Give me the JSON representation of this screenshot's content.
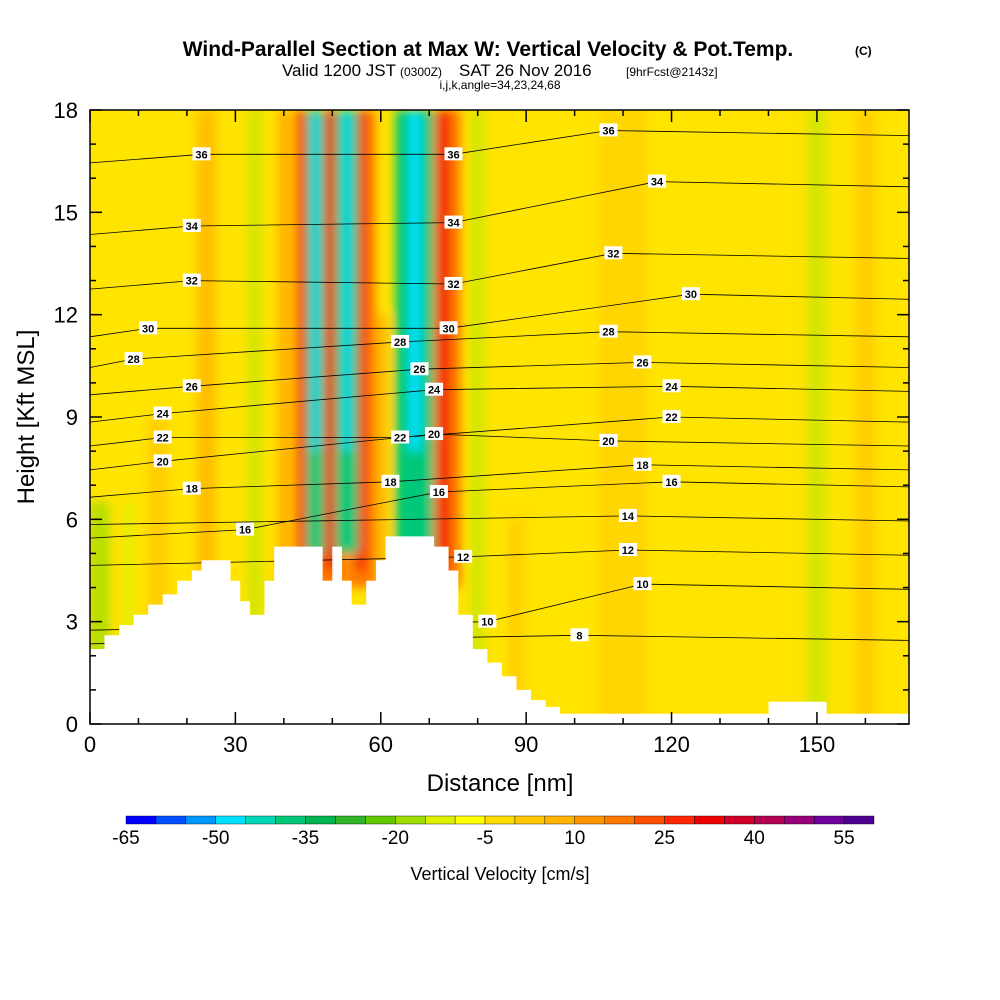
{
  "header": {
    "title": "Wind-Parallel Section at Max W: Vertical Velocity & Pot.Temp.",
    "copyright": "(C)",
    "valid_a": "Valid 1200 JST",
    "valid_utc": "(0300Z)",
    "valid_b": "SAT 26 Nov 2016",
    "forecast": "[9hrFcst@2143z]",
    "indices": "i,j,k,angle=34,23,24,68"
  },
  "chart_data": {
    "type": "heatmap",
    "title": "Wind-Parallel Section at Max W: Vertical Velocity & Pot.Temp.",
    "xlabel": "Distance [nm]",
    "ylabel": "Height [Kft MSL]",
    "xlim": [
      0,
      169
    ],
    "ylim": [
      0,
      18
    ],
    "x_ticks": [
      0,
      30,
      60,
      90,
      120,
      150
    ],
    "y_ticks": [
      0,
      3,
      6,
      9,
      12,
      15,
      18
    ],
    "colorbar": {
      "label": "Vertical Velocity [cm/s]",
      "min": -65,
      "max": 60,
      "step": 5,
      "tick_values": [
        -65,
        -50,
        -35,
        -20,
        -5,
        10,
        25,
        40,
        55
      ],
      "colors": [
        "#0000ff",
        "#0050ff",
        "#0096ff",
        "#00e0ff",
        "#00d7b4",
        "#00c878",
        "#00b450",
        "#32b428",
        "#64c800",
        "#a0dc00",
        "#dcf000",
        "#ffff00",
        "#ffdc00",
        "#ffc800",
        "#ffb400",
        "#ff9600",
        "#ff7800",
        "#ff5000",
        "#ff2800",
        "#f00000",
        "#d20028",
        "#b40050",
        "#960078",
        "#6e00a0",
        "#500090"
      ]
    },
    "updraft_bands": [
      {
        "x": 44,
        "w": 1.2,
        "max_height": 18
      },
      {
        "x": 49.5,
        "w": 2.0,
        "max_height": 18
      },
      {
        "x": 56,
        "w": 1.8,
        "max_height": 18
      },
      {
        "x": 73,
        "w": 2.2,
        "max_height": 18
      }
    ],
    "downdraft_bands": [
      {
        "x": 46.5,
        "w": 1.2,
        "max_height": 18
      },
      {
        "x": 53,
        "w": 1.5,
        "max_height": 18
      },
      {
        "x": 67,
        "w": 2.5,
        "max_height": 18
      }
    ],
    "theta_contour_labels": [
      {
        "value": "36",
        "x": 23,
        "y": 16.7
      },
      {
        "value": "34",
        "x": 21,
        "y": 14.6
      },
      {
        "value": "32",
        "x": 21,
        "y": 13.0
      },
      {
        "value": "30",
        "x": 12,
        "y": 11.6
      },
      {
        "value": "28",
        "x": 9,
        "y": 10.7
      },
      {
        "value": "26",
        "x": 21,
        "y": 9.9
      },
      {
        "value": "24",
        "x": 15,
        "y": 9.1
      },
      {
        "value": "22",
        "x": 15,
        "y": 8.4
      },
      {
        "value": "20",
        "x": 15,
        "y": 7.7
      },
      {
        "value": "18",
        "x": 21,
        "y": 6.9
      },
      {
        "value": "16",
        "x": 32,
        "y": 5.7
      },
      {
        "value": "36",
        "x": 75,
        "y": 16.7
      },
      {
        "value": "34",
        "x": 75,
        "y": 14.7
      },
      {
        "value": "32",
        "x": 75,
        "y": 12.9
      },
      {
        "value": "30",
        "x": 74,
        "y": 11.6
      },
      {
        "value": "28",
        "x": 64,
        "y": 11.2
      },
      {
        "value": "26",
        "x": 68,
        "y": 10.4
      },
      {
        "value": "24",
        "x": 71,
        "y": 9.8
      },
      {
        "value": "22",
        "x": 64,
        "y": 8.4
      },
      {
        "value": "20",
        "x": 71,
        "y": 8.5
      },
      {
        "value": "18",
        "x": 62,
        "y": 7.1
      },
      {
        "value": "16",
        "x": 72,
        "y": 6.8
      },
      {
        "value": "12",
        "x": 77,
        "y": 4.9
      },
      {
        "value": "10",
        "x": 82,
        "y": 3.0
      },
      {
        "value": "36",
        "x": 107,
        "y": 17.4
      },
      {
        "value": "34",
        "x": 117,
        "y": 15.9
      },
      {
        "value": "32",
        "x": 108,
        "y": 13.8
      },
      {
        "value": "30",
        "x": 124,
        "y": 12.6
      },
      {
        "value": "28",
        "x": 107,
        "y": 11.5
      },
      {
        "value": "26",
        "x": 114,
        "y": 10.6
      },
      {
        "value": "24",
        "x": 120,
        "y": 9.9
      },
      {
        "value": "22",
        "x": 120,
        "y": 9.0
      },
      {
        "value": "20",
        "x": 107,
        "y": 8.3
      },
      {
        "value": "18",
        "x": 114,
        "y": 7.6
      },
      {
        "value": "16",
        "x": 120,
        "y": 7.1
      },
      {
        "value": "14",
        "x": 111,
        "y": 6.1
      },
      {
        "value": "12",
        "x": 111,
        "y": 5.1
      },
      {
        "value": "10",
        "x": 114,
        "y": 4.1
      },
      {
        "value": "8",
        "x": 101,
        "y": 2.6
      }
    ],
    "terrain": [
      [
        0,
        2.2
      ],
      [
        3,
        2.2
      ],
      [
        3,
        2.6
      ],
      [
        6,
        2.6
      ],
      [
        6,
        2.9
      ],
      [
        9,
        2.9
      ],
      [
        9,
        3.2
      ],
      [
        12,
        3.2
      ],
      [
        12,
        3.5
      ],
      [
        15,
        3.5
      ],
      [
        15,
        3.8
      ],
      [
        18,
        3.8
      ],
      [
        18,
        4.2
      ],
      [
        21,
        4.2
      ],
      [
        21,
        4.5
      ],
      [
        23,
        4.5
      ],
      [
        23,
        4.8
      ],
      [
        29,
        4.8
      ],
      [
        29,
        4.2
      ],
      [
        31,
        4.2
      ],
      [
        31,
        3.6
      ],
      [
        33,
        3.6
      ],
      [
        33,
        3.2
      ],
      [
        36,
        3.2
      ],
      [
        36,
        4.2
      ],
      [
        38,
        4.2
      ],
      [
        38,
        5.2
      ],
      [
        48,
        5.2
      ],
      [
        48,
        4.2
      ],
      [
        50,
        4.2
      ],
      [
        50,
        5.2
      ],
      [
        52,
        5.2
      ],
      [
        52,
        4.2
      ],
      [
        54,
        4.2
      ],
      [
        54,
        3.5
      ],
      [
        57,
        3.5
      ],
      [
        57,
        4.2
      ],
      [
        59,
        4.2
      ],
      [
        59,
        4.8
      ],
      [
        61,
        4.8
      ],
      [
        61,
        5.5
      ],
      [
        71,
        5.5
      ],
      [
        71,
        5.2
      ],
      [
        74,
        5.2
      ],
      [
        74,
        4.5
      ],
      [
        76,
        4.5
      ],
      [
        76,
        3.2
      ],
      [
        79,
        3.2
      ],
      [
        79,
        2.2
      ],
      [
        82,
        2.2
      ],
      [
        82,
        1.8
      ],
      [
        85,
        1.8
      ],
      [
        85,
        1.4
      ],
      [
        88,
        1.4
      ],
      [
        88,
        1.0
      ],
      [
        91,
        1.0
      ],
      [
        91,
        0.7
      ],
      [
        94,
        0.7
      ],
      [
        94,
        0.5
      ],
      [
        97,
        0.5
      ],
      [
        97,
        0.3
      ],
      [
        140,
        0.3
      ],
      [
        140,
        0.65
      ],
      [
        152,
        0.65
      ],
      [
        152,
        0.3
      ],
      [
        154,
        0.3
      ],
      [
        154,
        0.3
      ],
      [
        169,
        0.3
      ]
    ]
  }
}
